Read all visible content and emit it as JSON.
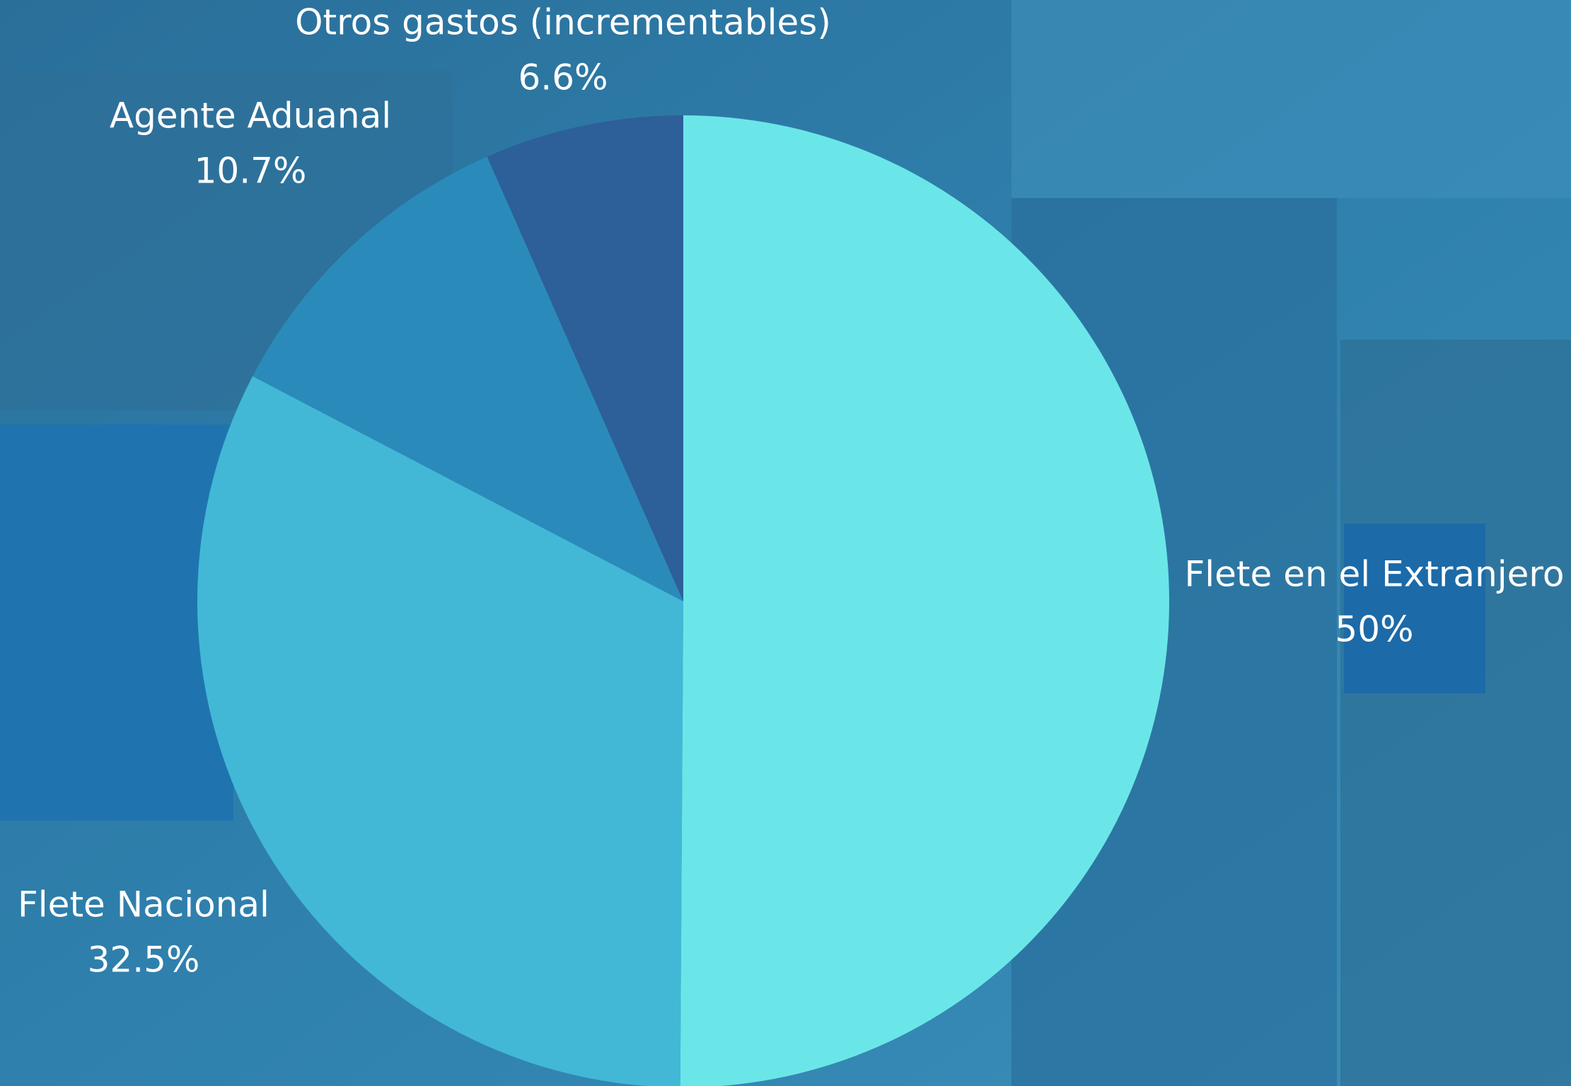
{
  "chart_data": {
    "type": "pie",
    "categories": [
      "Flete en el Extranjero",
      "Flete Nacional",
      "Agente Aduanal",
      "Otros gastos (incrementables)"
    ],
    "values": [
      50,
      32.5,
      10.7,
      6.6
    ],
    "value_labels": [
      "50%",
      "32.5%",
      "10.7%",
      "6.6%"
    ],
    "colors": [
      "#6be6e8",
      "#42b8d6",
      "#2a8bbb",
      "#2d5f99"
    ]
  }
}
